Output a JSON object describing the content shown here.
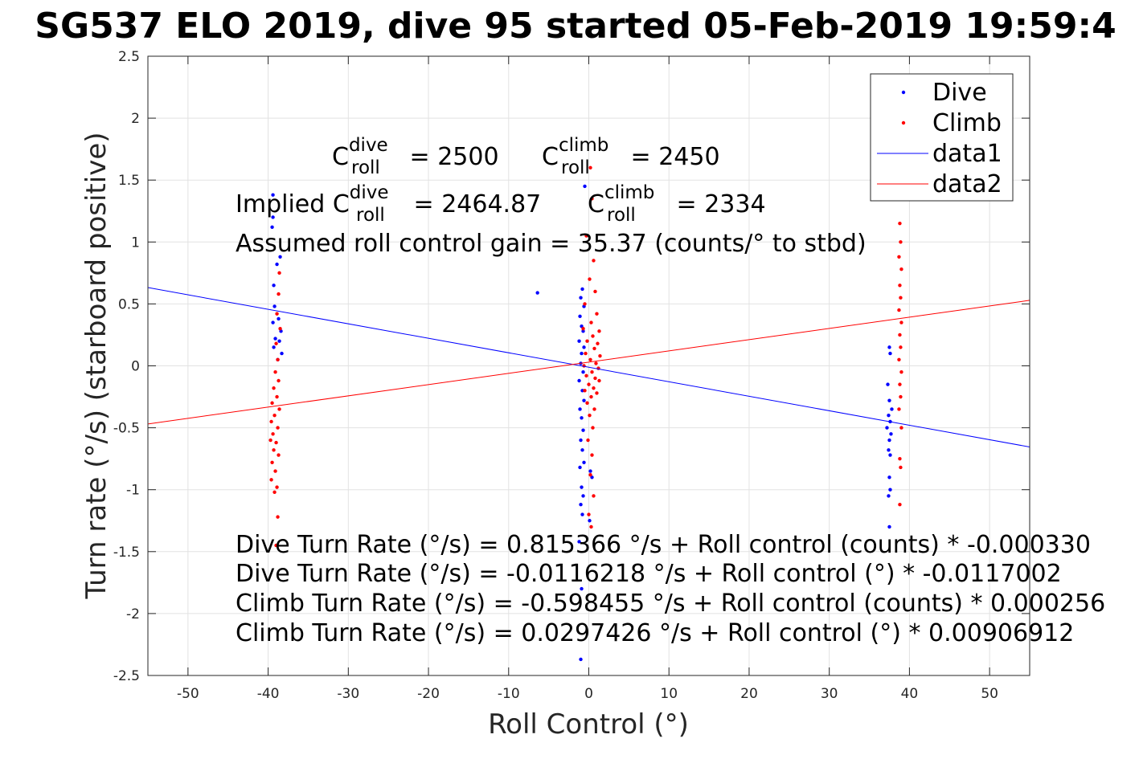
{
  "chart_data": {
    "type": "scatter",
    "title": "SG537 ELO 2019, dive 95 started 05-Feb-2019 19:59:4",
    "xlabel": "Roll Control (°)",
    "ylabel": "Turn rate (°/s) (starboard positive)",
    "xlim": [
      -55,
      55
    ],
    "ylim": [
      -2.5,
      2.5
    ],
    "x_ticks": [
      -50,
      -40,
      -30,
      -20,
      -10,
      0,
      10,
      20,
      30,
      40,
      50
    ],
    "y_ticks": [
      -2.5,
      -2,
      -1.5,
      -1,
      -0.5,
      0,
      0.5,
      1,
      1.5,
      2,
      2.5
    ],
    "grid": true,
    "legend_position": "top-right",
    "series": [
      {
        "name": "Dive",
        "mode": "markers",
        "color": "#0000ff",
        "points": [
          [
            -39.4,
            1.38
          ],
          [
            -39.4,
            1.2
          ],
          [
            -39.5,
            1.12
          ],
          [
            -38.5,
            0.88
          ],
          [
            -38.9,
            0.82
          ],
          [
            -39.3,
            0.65
          ],
          [
            -39.2,
            0.48
          ],
          [
            -38.7,
            0.38
          ],
          [
            -39.4,
            0.35
          ],
          [
            -38.4,
            0.28
          ],
          [
            -39.1,
            0.22
          ],
          [
            -38.6,
            0.2
          ],
          [
            -39.3,
            0.15
          ],
          [
            -38.3,
            0.1
          ],
          [
            -38.8,
            0.05
          ],
          [
            -0.5,
            1.45
          ],
          [
            -0.8,
            0.62
          ],
          [
            -1.0,
            0.55
          ],
          [
            -0.6,
            0.48
          ],
          [
            -1.1,
            0.4
          ],
          [
            -0.9,
            0.32
          ],
          [
            -0.7,
            0.28
          ],
          [
            -1.2,
            0.2
          ],
          [
            -0.6,
            0.15
          ],
          [
            -0.9,
            0.1
          ],
          [
            -1.0,
            0.02
          ],
          [
            -0.7,
            -0.05
          ],
          [
            -1.2,
            -0.12
          ],
          [
            -0.8,
            -0.2
          ],
          [
            -0.6,
            -0.28
          ],
          [
            -1.1,
            -0.35
          ],
          [
            -0.9,
            -0.42
          ],
          [
            -0.7,
            -0.52
          ],
          [
            -1.0,
            -0.6
          ],
          [
            -0.8,
            -0.68
          ],
          [
            -0.6,
            -0.78
          ],
          [
            -1.1,
            -0.82
          ],
          [
            -0.9,
            -0.98
          ],
          [
            -0.7,
            -1.05
          ],
          [
            -1.0,
            -1.12
          ],
          [
            -0.8,
            -1.2
          ],
          [
            0.2,
            -0.85
          ],
          [
            0.4,
            -0.9
          ],
          [
            0.1,
            -1.25
          ],
          [
            -1.2,
            -1.42
          ],
          [
            -0.9,
            -1.8
          ],
          [
            -1.0,
            -2.37
          ],
          [
            -6.4,
            0.59
          ],
          [
            37.5,
            0.15
          ],
          [
            37.6,
            0.1
          ],
          [
            37.3,
            -0.15
          ],
          [
            37.5,
            -0.28
          ],
          [
            37.8,
            -0.35
          ],
          [
            37.4,
            -0.4
          ],
          [
            37.6,
            -0.45
          ],
          [
            37.2,
            -0.5
          ],
          [
            37.7,
            -0.55
          ],
          [
            37.5,
            -0.6
          ],
          [
            37.4,
            -0.68
          ],
          [
            37.6,
            -0.72
          ],
          [
            37.5,
            -0.9
          ],
          [
            37.6,
            -1.0
          ],
          [
            37.4,
            -1.05
          ],
          [
            37.5,
            -1.3
          ]
        ]
      },
      {
        "name": "Climb",
        "mode": "markers",
        "color": "#ff0000",
        "points": [
          [
            -38.6,
            0.75
          ],
          [
            -38.7,
            0.58
          ],
          [
            -38.9,
            0.42
          ],
          [
            -38.5,
            0.3
          ],
          [
            -39.0,
            0.18
          ],
          [
            -38.8,
            0.05
          ],
          [
            -39.1,
            -0.05
          ],
          [
            -38.7,
            -0.12
          ],
          [
            -39.3,
            -0.18
          ],
          [
            -38.9,
            -0.25
          ],
          [
            -39.5,
            -0.3
          ],
          [
            -38.6,
            -0.35
          ],
          [
            -39.2,
            -0.4
          ],
          [
            -39.6,
            -0.45
          ],
          [
            -38.8,
            -0.5
          ],
          [
            -39.4,
            -0.55
          ],
          [
            -39.7,
            -0.6
          ],
          [
            -39.0,
            -0.62
          ],
          [
            -39.3,
            -0.68
          ],
          [
            -38.7,
            -0.72
          ],
          [
            -39.5,
            -0.78
          ],
          [
            -39.1,
            -0.85
          ],
          [
            -39.6,
            -0.92
          ],
          [
            -38.9,
            -0.98
          ],
          [
            -39.2,
            -1.02
          ],
          [
            -38.8,
            -1.22
          ],
          [
            -39.0,
            -1.45
          ],
          [
            0.2,
            1.6
          ],
          [
            0.4,
            1.35
          ],
          [
            -0.3,
            1.05
          ],
          [
            0.6,
            0.85
          ],
          [
            0.1,
            0.7
          ],
          [
            0.8,
            0.6
          ],
          [
            -0.5,
            0.5
          ],
          [
            1.0,
            0.42
          ],
          [
            0.3,
            0.35
          ],
          [
            -0.7,
            0.3
          ],
          [
            1.3,
            0.28
          ],
          [
            0.5,
            0.24
          ],
          [
            -0.2,
            0.2
          ],
          [
            1.1,
            0.18
          ],
          [
            0.7,
            0.14
          ],
          [
            -0.4,
            0.1
          ],
          [
            1.4,
            0.08
          ],
          [
            0.2,
            0.05
          ],
          [
            0.9,
            0.02
          ],
          [
            -0.6,
            0.0
          ],
          [
            1.2,
            -0.02
          ],
          [
            0.4,
            -0.05
          ],
          [
            -0.3,
            -0.08
          ],
          [
            0.8,
            -0.1
          ],
          [
            1.3,
            -0.12
          ],
          [
            0.0,
            -0.15
          ],
          [
            0.6,
            -0.18
          ],
          [
            -0.5,
            -0.2
          ],
          [
            1.0,
            -0.22
          ],
          [
            0.3,
            -0.25
          ],
          [
            -0.2,
            -0.3
          ],
          [
            0.7,
            -0.35
          ],
          [
            0.1,
            -0.4
          ],
          [
            0.5,
            -0.5
          ],
          [
            -0.1,
            -0.6
          ],
          [
            0.4,
            -0.72
          ],
          [
            0.2,
            -0.88
          ],
          [
            0.6,
            -1.05
          ],
          [
            0.0,
            -1.2
          ],
          [
            0.3,
            -1.3
          ],
          [
            38.8,
            1.15
          ],
          [
            38.9,
            1.0
          ],
          [
            38.7,
            0.88
          ],
          [
            39.0,
            0.78
          ],
          [
            38.8,
            0.65
          ],
          [
            38.9,
            0.55
          ],
          [
            38.7,
            0.45
          ],
          [
            39.0,
            0.35
          ],
          [
            38.8,
            0.25
          ],
          [
            38.9,
            0.15
          ],
          [
            38.7,
            0.05
          ],
          [
            39.0,
            -0.05
          ],
          [
            38.8,
            -0.15
          ],
          [
            38.9,
            -0.25
          ],
          [
            38.7,
            -0.35
          ],
          [
            39.0,
            -0.5
          ],
          [
            38.8,
            -0.75
          ],
          [
            38.9,
            -0.82
          ],
          [
            38.8,
            -1.12
          ]
        ]
      },
      {
        "name": "data1",
        "mode": "line",
        "color": "#0000ff",
        "x": [
          -55,
          55
        ],
        "y": [
          0.632,
          -0.655
        ]
      },
      {
        "name": "data2",
        "mode": "line",
        "color": "#ff0000",
        "x": [
          -55,
          55
        ],
        "y": [
          -0.469,
          0.529
        ]
      }
    ]
  },
  "annotations": {
    "c_roll_dive": {
      "c": "C",
      "sup": "dive",
      "sub": "roll",
      "rest": " = 2500"
    },
    "c_roll_climb": {
      "c": "C",
      "sup": "climb",
      "sub": "roll",
      "rest": " = 2450"
    },
    "implied_dive": {
      "prefix": "Implied C",
      "sup": "dive",
      "sub": "roll",
      "rest": " = 2464.87"
    },
    "implied_climb": {
      "c": "C",
      "sup": "climb",
      "sub": "roll",
      "rest": " = 2334"
    },
    "gain": "Assumed roll control gain = 35.37 (counts/° to stbd)",
    "fit_lines": [
      "Dive Turn Rate (°/s) = 0.815366 °/s + Roll control (counts) * -0.000330",
      "Dive Turn Rate (°/s) = -0.0116218 °/s + Roll control (°) * -0.0117002",
      "Climb Turn Rate (°/s) = -0.598455 °/s + Roll control (counts) * 0.000256",
      "Climb Turn Rate (°/s) = 0.0297426 °/s + Roll control (°) * 0.00906912"
    ]
  }
}
